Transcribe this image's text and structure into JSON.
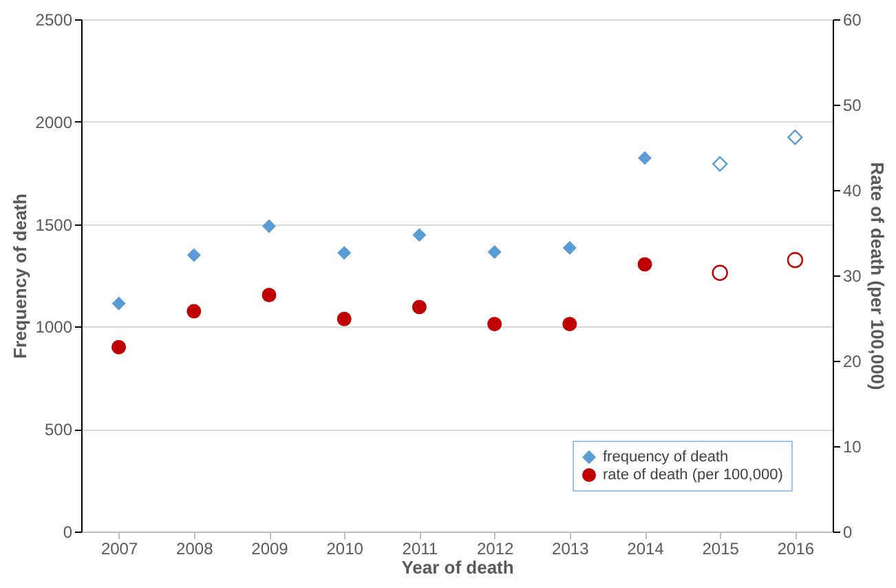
{
  "chart_data": {
    "type": "scatter",
    "xlabel": "Year of death",
    "ylabel": "Frequency of death",
    "y2label": "Rate of death (per 100,000)",
    "categories": [
      "2007",
      "2008",
      "2009",
      "2010",
      "2011",
      "2012",
      "2013",
      "2014",
      "2015",
      "2016"
    ],
    "series": [
      {
        "name": "frequency of death",
        "color": "#5b9bd5",
        "marker": "diamond",
        "values": [
          1113,
          1349,
          1490,
          1360,
          1447,
          1364,
          1384,
          1823,
          null,
          null
        ]
      },
      {
        "color": "#5b9bd5",
        "marker": "diamond",
        "values": [
          null,
          null,
          null,
          null,
          null,
          null,
          null,
          null,
          1794,
          1924
        ]
      },
      {
        "name": "rate of death (per 100,000)",
        "color": "#c00000",
        "marker": "circle",
        "axis": "y2",
        "values": [
          21.6,
          25.8,
          27.7,
          24.9,
          26.3,
          24.3,
          24.3,
          31.3,
          null,
          null
        ]
      },
      {
        "color": "#c00000",
        "marker": "circle",
        "axis": "y2",
        "values": [
          null,
          null,
          null,
          null,
          null,
          null,
          null,
          null,
          30.3,
          31.8
        ]
      }
    ],
    "ylim": [
      0,
      2500
    ],
    "yticks": [
      0,
      500,
      1000,
      1500,
      2000,
      2500
    ],
    "y2lim": [
      0,
      60
    ],
    "y2ticks": [
      0,
      10,
      20,
      30,
      40,
      50,
      60
    ],
    "grid": "y",
    "legend": "bottom right"
  }
}
